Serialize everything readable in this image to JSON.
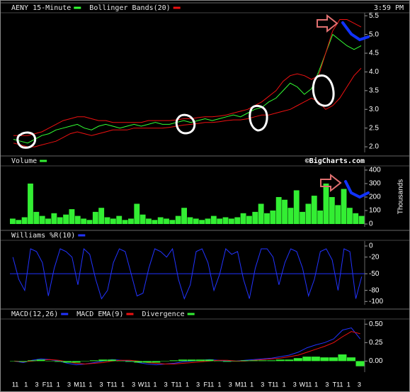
{
  "chart_data": [
    {
      "type": "line",
      "time": "3:59 PM",
      "ylim": [
        1.85,
        5.58
      ],
      "yticks": [
        {
          "value": 2,
          "label": "2.0"
        },
        2.5,
        {
          "value": 3,
          "label": "3.0"
        },
        3.5,
        {
          "value": 4,
          "label": "4.0"
        },
        4.5,
        {
          "value": 5,
          "label": "5.0"
        },
        5.5
      ],
      "series": [
        {
          "name": "AENY 15-Minute",
          "color": "#33ff33",
          "values": [
            2.2,
            2.15,
            2.1,
            2.2,
            2.3,
            2.35,
            2.45,
            2.5,
            2.55,
            2.6,
            2.5,
            2.45,
            2.55,
            2.6,
            2.55,
            2.5,
            2.55,
            2.6,
            2.55,
            2.6,
            2.65,
            2.6,
            2.6,
            2.65,
            2.7,
            2.65,
            2.7,
            2.75,
            2.7,
            2.75,
            2.8,
            2.85,
            2.8,
            2.9,
            3.0,
            3.05,
            3.2,
            3.3,
            3.5,
            3.7,
            3.6,
            3.4,
            3.55,
            4.0,
            4.5,
            5.0,
            4.85,
            4.7,
            4.6,
            4.7
          ]
        },
        {
          "name": "Bollinger Bands(20)",
          "color": "#ee1111",
          "values": [
            2.3,
            2.3,
            2.3,
            2.35,
            2.4,
            2.5,
            2.6,
            2.7,
            2.75,
            2.8,
            2.8,
            2.75,
            2.7,
            2.7,
            2.65,
            2.65,
            2.65,
            2.65,
            2.65,
            2.7,
            2.7,
            2.7,
            2.7,
            2.72,
            2.75,
            2.75,
            2.78,
            2.8,
            2.8,
            2.82,
            2.85,
            2.9,
            2.95,
            3.0,
            3.1,
            3.2,
            3.35,
            3.5,
            3.75,
            3.9,
            3.95,
            3.9,
            3.8,
            3.9,
            4.5,
            5.1,
            5.4,
            5.4,
            5.3,
            5.2
          ],
          "lower": [
            2.1,
            2.05,
            2.0,
            2.0,
            2.05,
            2.1,
            2.15,
            2.25,
            2.35,
            2.4,
            2.35,
            2.3,
            2.35,
            2.4,
            2.45,
            2.45,
            2.45,
            2.5,
            2.5,
            2.5,
            2.5,
            2.5,
            2.52,
            2.55,
            2.58,
            2.6,
            2.62,
            2.65,
            2.65,
            2.67,
            2.7,
            2.72,
            2.72,
            2.75,
            2.8,
            2.85,
            2.85,
            2.9,
            2.95,
            3.0,
            3.1,
            3.2,
            3.3,
            3.2,
            3.0,
            3.1,
            3.3,
            3.6,
            3.9,
            4.1
          ]
        }
      ]
    },
    {
      "type": "bar",
      "credit": "©BigCharts.com",
      "ylabel": "Thousands",
      "ylim": [
        -21,
        426
      ],
      "yticks": [
        0,
        100,
        200,
        300,
        400
      ],
      "series": [
        {
          "name": "Volume",
          "color": "#33ee33",
          "values": [
            40,
            30,
            50,
            300,
            90,
            60,
            40,
            80,
            50,
            70,
            110,
            60,
            40,
            30,
            90,
            120,
            50,
            40,
            60,
            30,
            40,
            150,
            70,
            40,
            30,
            50,
            40,
            30,
            60,
            120,
            50,
            40,
            30,
            40,
            60,
            40,
            50,
            40,
            50,
            80,
            60,
            90,
            150,
            80,
            100,
            200,
            180,
            120,
            250,
            90,
            150,
            210,
            100,
            300,
            200,
            140,
            260,
            120,
            80,
            60
          ]
        }
      ]
    },
    {
      "type": "line",
      "ylim": [
        -106,
        9
      ],
      "yticks": [
        0,
        -20,
        -50,
        -80,
        -100
      ],
      "reference_line": -50,
      "series": [
        {
          "name": "Williams %R(10)",
          "color": "#2233ff",
          "values": [
            -20,
            -60,
            -80,
            -5,
            -10,
            -30,
            -90,
            -40,
            -5,
            -10,
            -20,
            -70,
            -5,
            -15,
            -60,
            -95,
            -80,
            -30,
            -5,
            -10,
            -50,
            -90,
            -85,
            -40,
            -5,
            -10,
            -20,
            -5,
            -60,
            -95,
            -70,
            -10,
            -5,
            -30,
            -80,
            -50,
            -5,
            -15,
            -10,
            -60,
            -95,
            -40,
            -5,
            -5,
            -20,
            -70,
            -30,
            -5,
            -10,
            -40,
            -90,
            -60,
            -10,
            -5,
            -25,
            -80,
            -5,
            -10,
            -95,
            -55
          ]
        }
      ]
    },
    {
      "type": "line",
      "ylim": [
        -0.15,
        0.57
      ],
      "yticks": [
        {
          "value": 0,
          "label": "0.00"
        },
        {
          "value": 0.25,
          "label": "0.25"
        },
        {
          "value": 0.5,
          "label": "0.50"
        }
      ],
      "xtick_labels": [
        "11",
        "1",
        "3",
        "F11",
        "1",
        "3",
        "M11",
        "1",
        "3",
        "T11",
        "1",
        "3",
        "W11",
        "1",
        "3",
        "T11",
        "1",
        "3",
        "F11",
        "1",
        "3",
        "M11",
        "1",
        "3",
        "T11",
        "1",
        "3",
        "W11",
        "1",
        "3",
        "T11",
        "1",
        "3"
      ],
      "series": [
        {
          "name": "MACD(12,26)",
          "color": "#2233ff",
          "values": [
            0.0,
            -0.02,
            0.01,
            0.03,
            0.02,
            0.0,
            -0.03,
            -0.05,
            -0.04,
            -0.02,
            0.0,
            0.02,
            0.01,
            0.0,
            -0.02,
            -0.04,
            -0.05,
            -0.04,
            -0.03,
            -0.01,
            0.0,
            0.01,
            0.02,
            0.01,
            0.0,
            0.0,
            0.01,
            0.02,
            0.03,
            0.04,
            0.06,
            0.08,
            0.12,
            0.18,
            0.22,
            0.25,
            0.3,
            0.42,
            0.45,
            0.3
          ]
        },
        {
          "name": "MACD EMA(9)",
          "color": "#ee1111",
          "values": [
            0.0,
            -0.01,
            0.0,
            0.01,
            0.02,
            0.01,
            -0.01,
            -0.03,
            -0.04,
            -0.03,
            -0.02,
            0.0,
            0.01,
            0.01,
            0.0,
            -0.02,
            -0.03,
            -0.04,
            -0.04,
            -0.03,
            -0.02,
            -0.01,
            0.0,
            0.01,
            0.01,
            0.0,
            0.0,
            0.01,
            0.02,
            0.03,
            0.04,
            0.06,
            0.08,
            0.12,
            0.16,
            0.2,
            0.25,
            0.33,
            0.4,
            0.37
          ]
        },
        {
          "name": "Divergence",
          "color": "#33ee33",
          "type": "bar",
          "values": [
            0,
            -0.01,
            0.01,
            0.02,
            0,
            -0.01,
            -0.02,
            -0.02,
            0,
            0.01,
            0.02,
            0.02,
            0,
            -0.01,
            -0.02,
            -0.02,
            -0.02,
            0,
            0.01,
            0.02,
            0.02,
            0.02,
            0.02,
            0,
            -0.01,
            0,
            0.01,
            0.01,
            0.01,
            0.01,
            0.02,
            0.02,
            0.04,
            0.06,
            0.06,
            0.05,
            0.05,
            0.09,
            0.05,
            -0.07
          ]
        }
      ]
    }
  ]
}
